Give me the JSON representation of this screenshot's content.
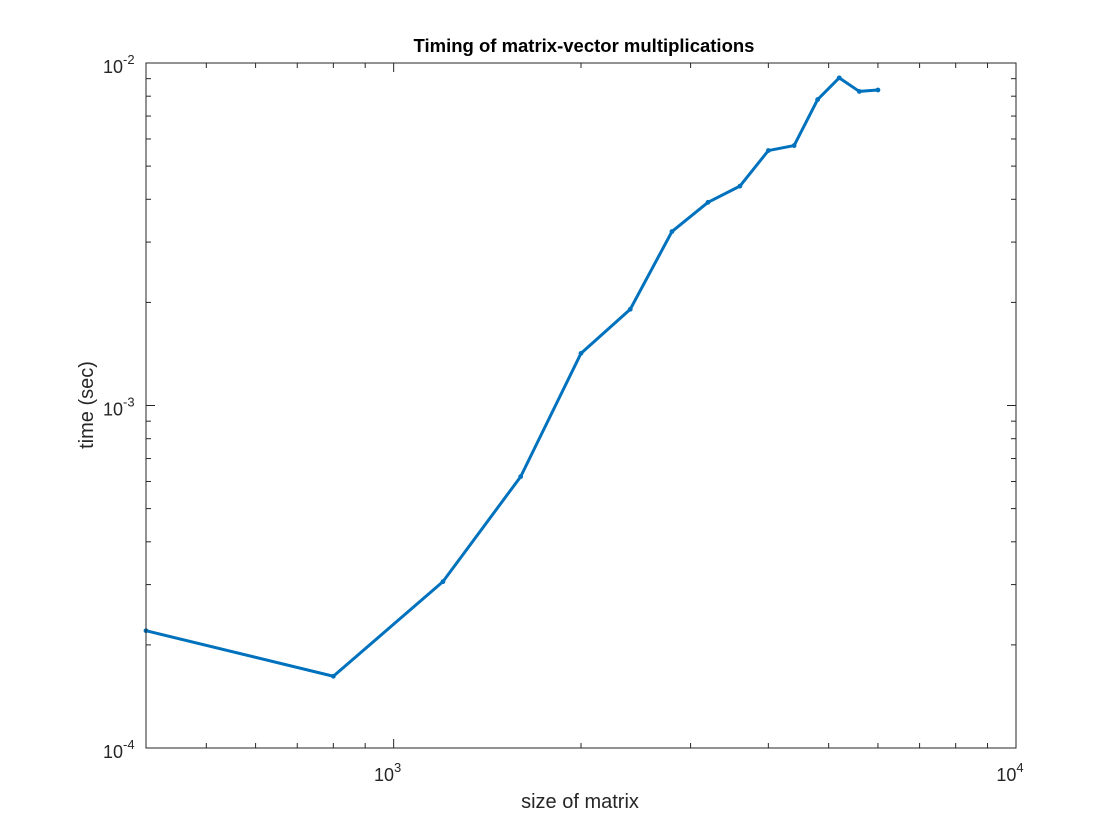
{
  "chart_data": {
    "type": "line",
    "title": "Timing of matrix-vector multiplications",
    "xlabel": "size of matrix",
    "ylabel": "time (sec)",
    "xscale": "log",
    "yscale": "log",
    "xlim": [
      400,
      10000
    ],
    "ylim": [
      0.0001,
      0.01
    ],
    "grid": false,
    "x_tick_labels": [
      {
        "value": 1000,
        "base": "10",
        "exp": "3"
      },
      {
        "value": 10000,
        "base": "10",
        "exp": "4"
      }
    ],
    "y_tick_labels": [
      {
        "value": 0.0001,
        "base": "10",
        "exp": "-4"
      },
      {
        "value": 0.001,
        "base": "10",
        "exp": "-3"
      },
      {
        "value": 0.01,
        "base": "10",
        "exp": "-2"
      }
    ],
    "series": [
      {
        "color": "#0072BD",
        "marker": "point",
        "x": [
          400,
          800,
          1200,
          1600,
          2000,
          2400,
          2800,
          3200,
          3600,
          4000,
          4400,
          4800,
          5200,
          5600,
          6000
        ],
        "y": [
          0.00022,
          0.000162,
          0.000306,
          0.00062,
          0.00142,
          0.00191,
          0.00322,
          0.00392,
          0.00437,
          0.00555,
          0.00574,
          0.00782,
          0.00905,
          0.00826,
          0.00834
        ]
      }
    ]
  }
}
